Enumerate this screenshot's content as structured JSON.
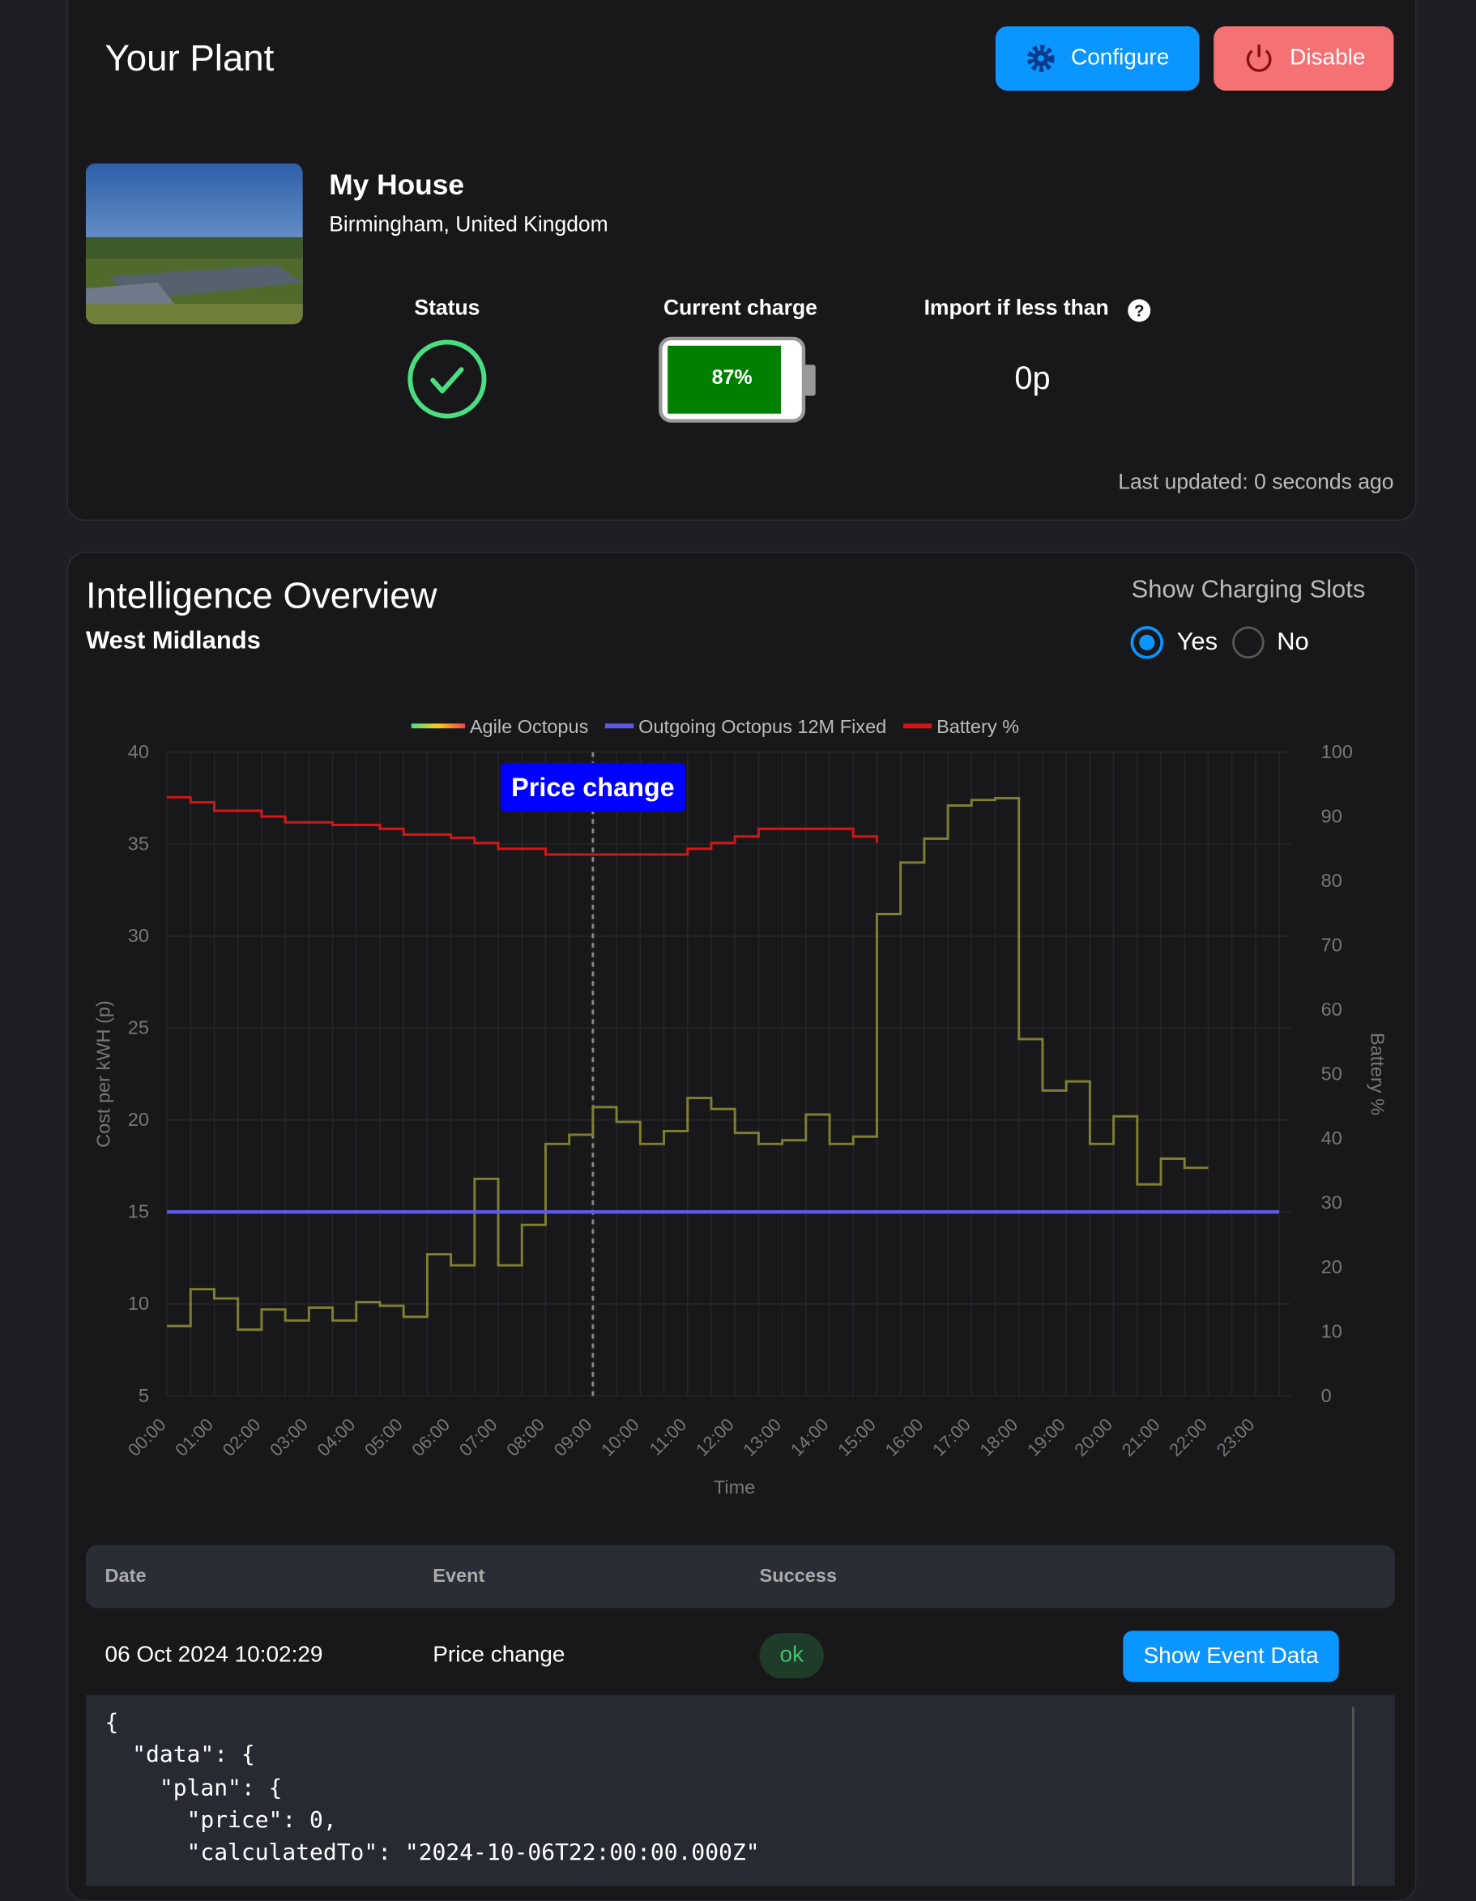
{
  "header": {
    "title": "Your Plant",
    "buttons": [
      "Configure",
      "Disable"
    ]
  },
  "plant": {
    "name": "My House",
    "location": "Birmingham, United Kingdom",
    "status_label": "Status",
    "charge_label": "Current charge",
    "charge": "87%",
    "import_label": "Import if less than",
    "import_value": "0p",
    "updated": "Last updated: 0 seconds ago"
  },
  "overview": {
    "title": "Intelligence Overview",
    "region": "West Midlands",
    "slots_label": "Show Charging Slots",
    "options": [
      "Yes",
      "No"
    ]
  },
  "chart_data": {
    "type": "line",
    "categories": [
      "00:00",
      null,
      "01:00",
      null,
      "02:00",
      null,
      "03:00",
      null,
      "04:00",
      null,
      "05:00",
      null,
      "06:00",
      null,
      "07:00",
      null,
      "08:00",
      null,
      "09:00",
      null,
      "10:00",
      null,
      "11:00",
      null,
      "12:00",
      null,
      "13:00",
      null,
      "14:00",
      null,
      "15:00",
      null,
      "16:00",
      null,
      "17:00",
      null,
      "18:00",
      null,
      "19:00",
      null,
      "20:00",
      null,
      "21:00",
      null,
      "22:00",
      null,
      "23:00",
      null
    ],
    "series": [
      {
        "name": "Agile Octopus",
        "color": "#7f7f30",
        "values": [
          8.8,
          10.8,
          10.3,
          8.6,
          9.7,
          9.1,
          9.8,
          9.1,
          10.1,
          9.9,
          9.3,
          12.7,
          12.1,
          16.8,
          12.1,
          14.3,
          18.7,
          19.2,
          20.7,
          19.9,
          18.7,
          19.4,
          21.2,
          20.6,
          19.3,
          18.7,
          18.9,
          20.3,
          18.7,
          19.1,
          31.2,
          34.0,
          35.3,
          37.1,
          37.4,
          37.5,
          24.4,
          21.6,
          22.1,
          18.7,
          20.2,
          16.5,
          17.9,
          17.4,
          17.4,
          null,
          null,
          null
        ]
      },
      {
        "name": "Outgoing Octopus 12M Fixed",
        "color": "#5a5ae6",
        "values": [
          15,
          15,
          15,
          15,
          15,
          15,
          15,
          15,
          15,
          15,
          15,
          15,
          15,
          15,
          15,
          15,
          15,
          15,
          15,
          15,
          15,
          15,
          15,
          15,
          15,
          15,
          15,
          15,
          15,
          15,
          15,
          15,
          15,
          15,
          15,
          15,
          15,
          15,
          15,
          15,
          15,
          15,
          15,
          15,
          15,
          15,
          15,
          15
        ]
      },
      {
        "name": "Battery %",
        "color": "#d81414",
        "axis": "y2",
        "values": [
          93.0,
          92.2,
          90.9,
          90.9,
          90.0,
          89.1,
          89.1,
          88.7,
          88.7,
          88.1,
          87.2,
          87.2,
          86.7,
          85.9,
          85.0,
          85.0,
          84.1,
          84.1,
          84.1,
          84.1,
          84.1,
          84.1,
          85.0,
          85.9,
          86.9,
          88.1,
          88.1,
          88.1,
          88.1,
          86.9,
          85.9,
          null,
          null,
          null,
          null,
          null,
          null,
          null,
          null,
          null,
          null,
          null,
          null,
          null,
          null,
          null,
          null,
          null
        ]
      }
    ],
    "ylim": [
      5,
      40
    ],
    "yticks": [
      5,
      10,
      15,
      20,
      25,
      30,
      35,
      40
    ],
    "y2lim": [
      0,
      100
    ],
    "y2ticks": [
      0,
      10,
      20,
      30,
      40,
      50,
      60,
      70,
      80,
      90,
      100
    ],
    "ylabel": "Cost per kWH (p)",
    "y2label": "Battery %",
    "xlabel": "Time",
    "grid": true,
    "step": true,
    "annotation": {
      "text": "Price change",
      "at": "09:00"
    }
  },
  "table": {
    "headers": [
      "Date",
      "Event",
      "Success"
    ],
    "rows": [
      [
        "06 Oct 2024 10:02:29",
        "Price change",
        "ok"
      ]
    ],
    "button": "Show Event Data"
  },
  "json": [
    "{",
    "  \"data\": {",
    "    \"plan\": {",
    "      \"price\": 0,",
    "      \"calculatedTo\": \"2024-10-06T22:00:00.000Z\""
  ]
}
